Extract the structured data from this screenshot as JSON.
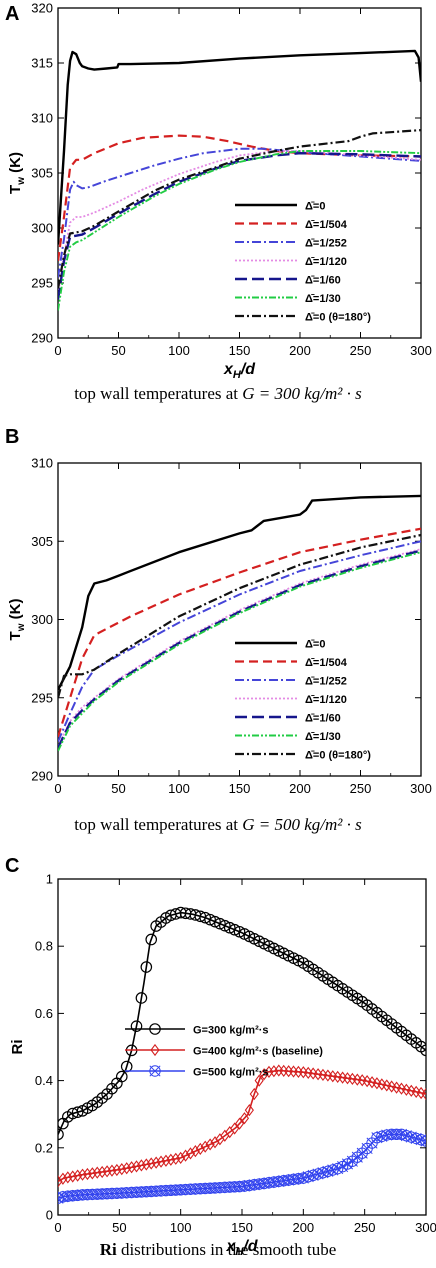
{
  "chart_data": [
    {
      "panel": "A",
      "type": "line",
      "ylabel_main": "T",
      "ylabel_sub": "w",
      "ylabel_unit": " (K)",
      "xlabel_main": "x",
      "xlabel_sub": "H",
      "xlabel_tail": "/d",
      "xlim": [
        0,
        300
      ],
      "ylim": [
        290,
        320
      ],
      "xticks": [
        0,
        50,
        100,
        150,
        200,
        250,
        300
      ],
      "yticks": [
        290,
        295,
        300,
        305,
        310,
        315,
        320
      ],
      "grid": false,
      "legend_position": "lower-right",
      "caption": {
        "prefix": "top wall temperatures at ",
        "math": "G = 300 kg/m² · s"
      },
      "series": [
        {
          "name": "Δ̄=0",
          "color": "#000000",
          "dash": "",
          "width": 2.4,
          "x": [
            0,
            5,
            8,
            10,
            12,
            15,
            18,
            20,
            25,
            30,
            40,
            49,
            50,
            60,
            100,
            150,
            200,
            250,
            295,
            298,
            300
          ],
          "y": [
            298.5,
            307,
            313,
            315.2,
            316,
            315.8,
            315,
            314.7,
            314.5,
            314.4,
            314.5,
            314.6,
            314.9,
            314.9,
            315.0,
            315.4,
            315.7,
            315.9,
            316.1,
            315.5,
            313.3
          ]
        },
        {
          "name": "Δ̄=1/504",
          "color": "#d42020",
          "dash": "9,5",
          "width": 2.2,
          "x": [
            0,
            5,
            10,
            15,
            20,
            30,
            50,
            70,
            100,
            120,
            140,
            160,
            180,
            200,
            250,
            300
          ],
          "y": [
            297,
            301,
            305.5,
            306.2,
            306.2,
            306.8,
            307.7,
            308.2,
            308.4,
            308.3,
            307.9,
            307.4,
            307.0,
            306.8,
            306.6,
            306.5
          ]
        },
        {
          "name": "Δ̄=1/252",
          "color": "#4545d8",
          "dash": "9,3,2,3",
          "width": 2.0,
          "x": [
            0,
            5,
            10,
            13,
            15,
            20,
            25,
            40,
            60,
            80,
            100,
            120,
            150,
            170,
            200,
            250,
            300
          ],
          "y": [
            295.5,
            299,
            303.5,
            304.2,
            303.9,
            303.6,
            303.7,
            304.3,
            305.0,
            305.7,
            306.3,
            306.8,
            307.2,
            307.2,
            306.9,
            306.5,
            306.1
          ]
        },
        {
          "name": "Δ̄=1/120",
          "color": "#e48be4",
          "dash": "2,2",
          "width": 1.8,
          "x": [
            0,
            5,
            10,
            15,
            20,
            30,
            50,
            70,
            100,
            130,
            150,
            180,
            200,
            250,
            300
          ],
          "y": [
            294,
            297.5,
            300.5,
            301.0,
            301.0,
            301.4,
            302.4,
            303.5,
            304.9,
            306.0,
            306.6,
            307.0,
            307.0,
            306.6,
            306.2
          ]
        },
        {
          "name": "Δ̄=1/60",
          "color": "#16168c",
          "dash": "12,5",
          "width": 2.4,
          "x": [
            0,
            5,
            10,
            15,
            20,
            30,
            50,
            80,
            100,
            130,
            150,
            180,
            200,
            250,
            300
          ],
          "y": [
            293.5,
            297,
            299.2,
            299.3,
            299.4,
            300.0,
            301.3,
            303.1,
            304.2,
            305.4,
            306.1,
            306.6,
            306.8,
            306.7,
            306.5
          ]
        },
        {
          "name": "Δ̄=1/30",
          "color": "#22cc44",
          "dash": "7,2,2,2,2,2",
          "width": 1.9,
          "x": [
            0,
            5,
            10,
            15,
            20,
            30,
            50,
            80,
            100,
            130,
            150,
            180,
            200,
            250,
            300
          ],
          "y": [
            292.5,
            296,
            298.3,
            298.7,
            298.9,
            299.6,
            301.0,
            302.9,
            304.0,
            305.3,
            306.0,
            306.7,
            307.0,
            307.0,
            306.8
          ]
        },
        {
          "name": "Δ̄=0 (θ=180°)",
          "color": "#111111",
          "dash": "9,3,2,3",
          "width": 2.2,
          "x": [
            0,
            5,
            10,
            15,
            20,
            30,
            50,
            80,
            100,
            130,
            150,
            180,
            200,
            240,
            250,
            260,
            300
          ],
          "y": [
            294.5,
            297.5,
            299.5,
            299.6,
            299.7,
            300.2,
            301.5,
            303.4,
            304.4,
            305.5,
            306.3,
            307.0,
            307.4,
            307.9,
            308.3,
            308.6,
            308.9
          ]
        }
      ]
    },
    {
      "panel": "B",
      "type": "line",
      "ylabel_main": "T",
      "ylabel_sub": "w",
      "ylabel_unit": " (K)",
      "xlabel_main": "x",
      "xlabel_sub": "H",
      "xlabel_tail": "/d",
      "xlim": [
        0,
        300
      ],
      "ylim": [
        290,
        310
      ],
      "xticks": [
        0,
        50,
        100,
        150,
        200,
        250,
        300
      ],
      "yticks": [
        290,
        295,
        300,
        305,
        310
      ],
      "grid": false,
      "legend_position": "lower-right",
      "caption": {
        "prefix": "top wall temperatures at ",
        "math": "G = 500 kg/m² · s"
      },
      "series": [
        {
          "name": "Δ̄=0",
          "color": "#000000",
          "dash": "",
          "width": 2.4,
          "x": [
            0,
            10,
            20,
            25,
            30,
            40,
            50,
            100,
            150,
            160,
            170,
            200,
            205,
            210,
            250,
            300
          ],
          "y": [
            295.5,
            297,
            299.5,
            301.5,
            302.3,
            302.5,
            302.8,
            304.3,
            305.5,
            305.7,
            306.3,
            306.7,
            307.0,
            307.6,
            307.8,
            307.9
          ]
        },
        {
          "name": "Δ̄=1/504",
          "color": "#d42020",
          "dash": "9,5",
          "width": 2.2,
          "x": [
            0,
            10,
            20,
            30,
            40,
            60,
            100,
            150,
            200,
            250,
            300
          ],
          "y": [
            292.5,
            295,
            297.5,
            299.0,
            299.4,
            300.2,
            301.6,
            303.0,
            304.3,
            305.1,
            305.8
          ]
        },
        {
          "name": "Δ̄=1/252",
          "color": "#4545d8",
          "dash": "9,3,2,3",
          "width": 2.0,
          "x": [
            0,
            10,
            20,
            30,
            50,
            100,
            150,
            200,
            250,
            300
          ],
          "y": [
            292.2,
            294,
            295.7,
            296.8,
            297.7,
            299.8,
            301.6,
            303.1,
            304.1,
            305.0
          ]
        },
        {
          "name": "Δ̄=1/120",
          "color": "#e48be4",
          "dash": "2,2",
          "width": 1.8,
          "x": [
            0,
            10,
            20,
            30,
            50,
            100,
            150,
            200,
            250,
            300
          ],
          "y": [
            291.9,
            293.5,
            294.4,
            295.0,
            296.2,
            298.6,
            300.6,
            302.3,
            303.5,
            304.5
          ]
        },
        {
          "name": "Δ̄=1/60",
          "color": "#16168c",
          "dash": "12,5",
          "width": 2.4,
          "x": [
            0,
            10,
            20,
            30,
            50,
            100,
            150,
            200,
            250,
            300
          ],
          "y": [
            291.8,
            293.4,
            294.2,
            294.9,
            296.1,
            298.5,
            300.5,
            302.2,
            303.4,
            304.4
          ]
        },
        {
          "name": "Δ̄=1/30",
          "color": "#22cc44",
          "dash": "7,2,2,2,2,2",
          "width": 1.9,
          "x": [
            0,
            10,
            20,
            30,
            50,
            100,
            150,
            200,
            250,
            300
          ],
          "y": [
            291.6,
            293.2,
            294.0,
            294.8,
            296.0,
            298.4,
            300.4,
            302.1,
            303.3,
            304.3
          ]
        },
        {
          "name": "Δ̄=0 (θ=180°)",
          "color": "#111111",
          "dash": "9,3,2,3",
          "width": 2.2,
          "x": [
            0,
            5,
            10,
            15,
            20,
            30,
            50,
            100,
            150,
            200,
            250,
            300
          ],
          "y": [
            295.0,
            296.4,
            296.5,
            296.5,
            296.5,
            296.8,
            297.8,
            300.2,
            302.0,
            303.5,
            304.6,
            305.4
          ]
        }
      ]
    },
    {
      "panel": "C",
      "type": "line",
      "ylabel_main": "Ri",
      "xlabel_main": "x",
      "xlabel_sub": "H",
      "xlabel_tail": "/d",
      "xlim": [
        0,
        300
      ],
      "ylim": [
        0,
        1.0
      ],
      "xticks": [
        0,
        50,
        100,
        150,
        200,
        250,
        300
      ],
      "yticks": [
        0,
        0.2,
        0.4,
        0.6,
        0.8,
        1.0
      ],
      "grid": false,
      "legend_position": "center-left",
      "caption": {
        "bold": "Ri",
        "suffix": " distributions in the smooth tube"
      },
      "series": [
        {
          "name": "G=300 kg/m²·s",
          "color": "#000000",
          "marker": "circle",
          "x": [
            0,
            5,
            10,
            20,
            30,
            40,
            50,
            55,
            60,
            65,
            70,
            75,
            80,
            90,
            100,
            110,
            120,
            150,
            200,
            250,
            300
          ],
          "y": [
            0.24,
            0.28,
            0.3,
            0.31,
            0.33,
            0.36,
            0.4,
            0.43,
            0.49,
            0.58,
            0.69,
            0.81,
            0.86,
            0.89,
            0.9,
            0.895,
            0.885,
            0.84,
            0.75,
            0.63,
            0.49
          ]
        },
        {
          "name": "G=400 kg/m²·s (baseline)",
          "color": "#d42020",
          "marker": "diamond",
          "x": [
            0,
            5,
            20,
            50,
            100,
            130,
            145,
            155,
            160,
            165,
            170,
            180,
            200,
            250,
            300
          ],
          "y": [
            0.1,
            0.11,
            0.12,
            0.135,
            0.17,
            0.22,
            0.26,
            0.3,
            0.36,
            0.41,
            0.425,
            0.43,
            0.425,
            0.4,
            0.36
          ]
        },
        {
          "name": "G=500 kg/m²·s",
          "color": "#3344ee",
          "marker": "xcircle",
          "x": [
            0,
            5,
            20,
            50,
            100,
            150,
            200,
            230,
            240,
            250,
            255,
            260,
            270,
            280,
            300
          ],
          "y": [
            0.05,
            0.055,
            0.06,
            0.065,
            0.075,
            0.085,
            0.11,
            0.14,
            0.16,
            0.19,
            0.21,
            0.23,
            0.24,
            0.24,
            0.22
          ]
        }
      ]
    }
  ]
}
